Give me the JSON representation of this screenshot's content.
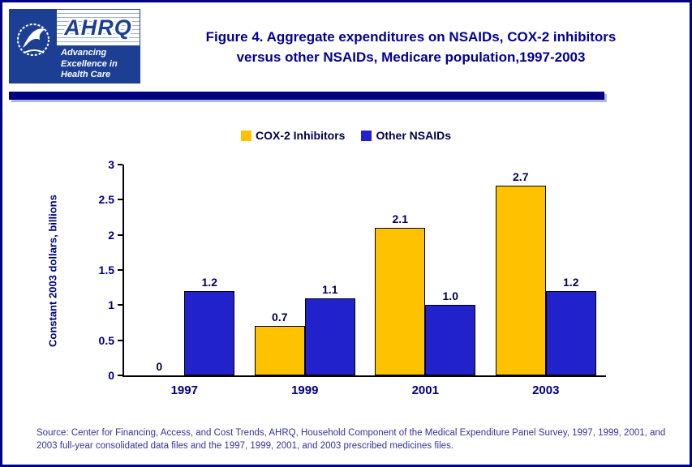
{
  "header": {
    "title_line1": "Figure 4. Aggregate expenditures on NSAIDs, COX-2 inhibitors",
    "title_line2": "versus other NSAIDs, Medicare population,1997-2003"
  },
  "logo": {
    "org": "AHRQ",
    "tagline": "Advancing\nExcellence in\nHealth Care",
    "brand_color": "#1C3F94"
  },
  "chart_data": {
    "type": "bar",
    "title": "Figure 4. Aggregate expenditures on NSAIDs, COX-2 inhibitors versus other NSAIDs, Medicare population,1997-2003",
    "categories": [
      "1997",
      "1999",
      "2001",
      "2003"
    ],
    "series": [
      {
        "name": "COX-2 Inhibitors",
        "color": "#FFC200",
        "values": [
          0,
          0.7,
          2.1,
          2.7
        ],
        "labels": [
          "0",
          "0.7",
          "2.1",
          "2.7"
        ]
      },
      {
        "name": "Other NSAIDs",
        "color": "#2222CC",
        "values": [
          1.2,
          1.1,
          1.0,
          1.2
        ],
        "labels": [
          "1.2",
          "1.1",
          "1.0",
          "1.2"
        ]
      }
    ],
    "xlabel": "",
    "ylabel": "Constant 2003 dollars, billions",
    "ylim": [
      0,
      3
    ],
    "yticks": [
      0,
      0.5,
      1,
      1.5,
      2,
      2.5,
      3
    ],
    "grid": false,
    "legend_position": "top",
    "bar_labels": true,
    "accent_colors": {
      "axis": "#000000",
      "tick_text": "#000080",
      "value_text": "#00004d"
    }
  },
  "source": {
    "text": "Source: Center for Financing, Access, and Cost Trends, AHRQ, Household Component of the Medical Expenditure Panel Survey, 1997, 1999, 2001, and 2003 full-year consolidated data files and the 1997, 1999, 2001, and 2003 prescribed medicines files."
  }
}
